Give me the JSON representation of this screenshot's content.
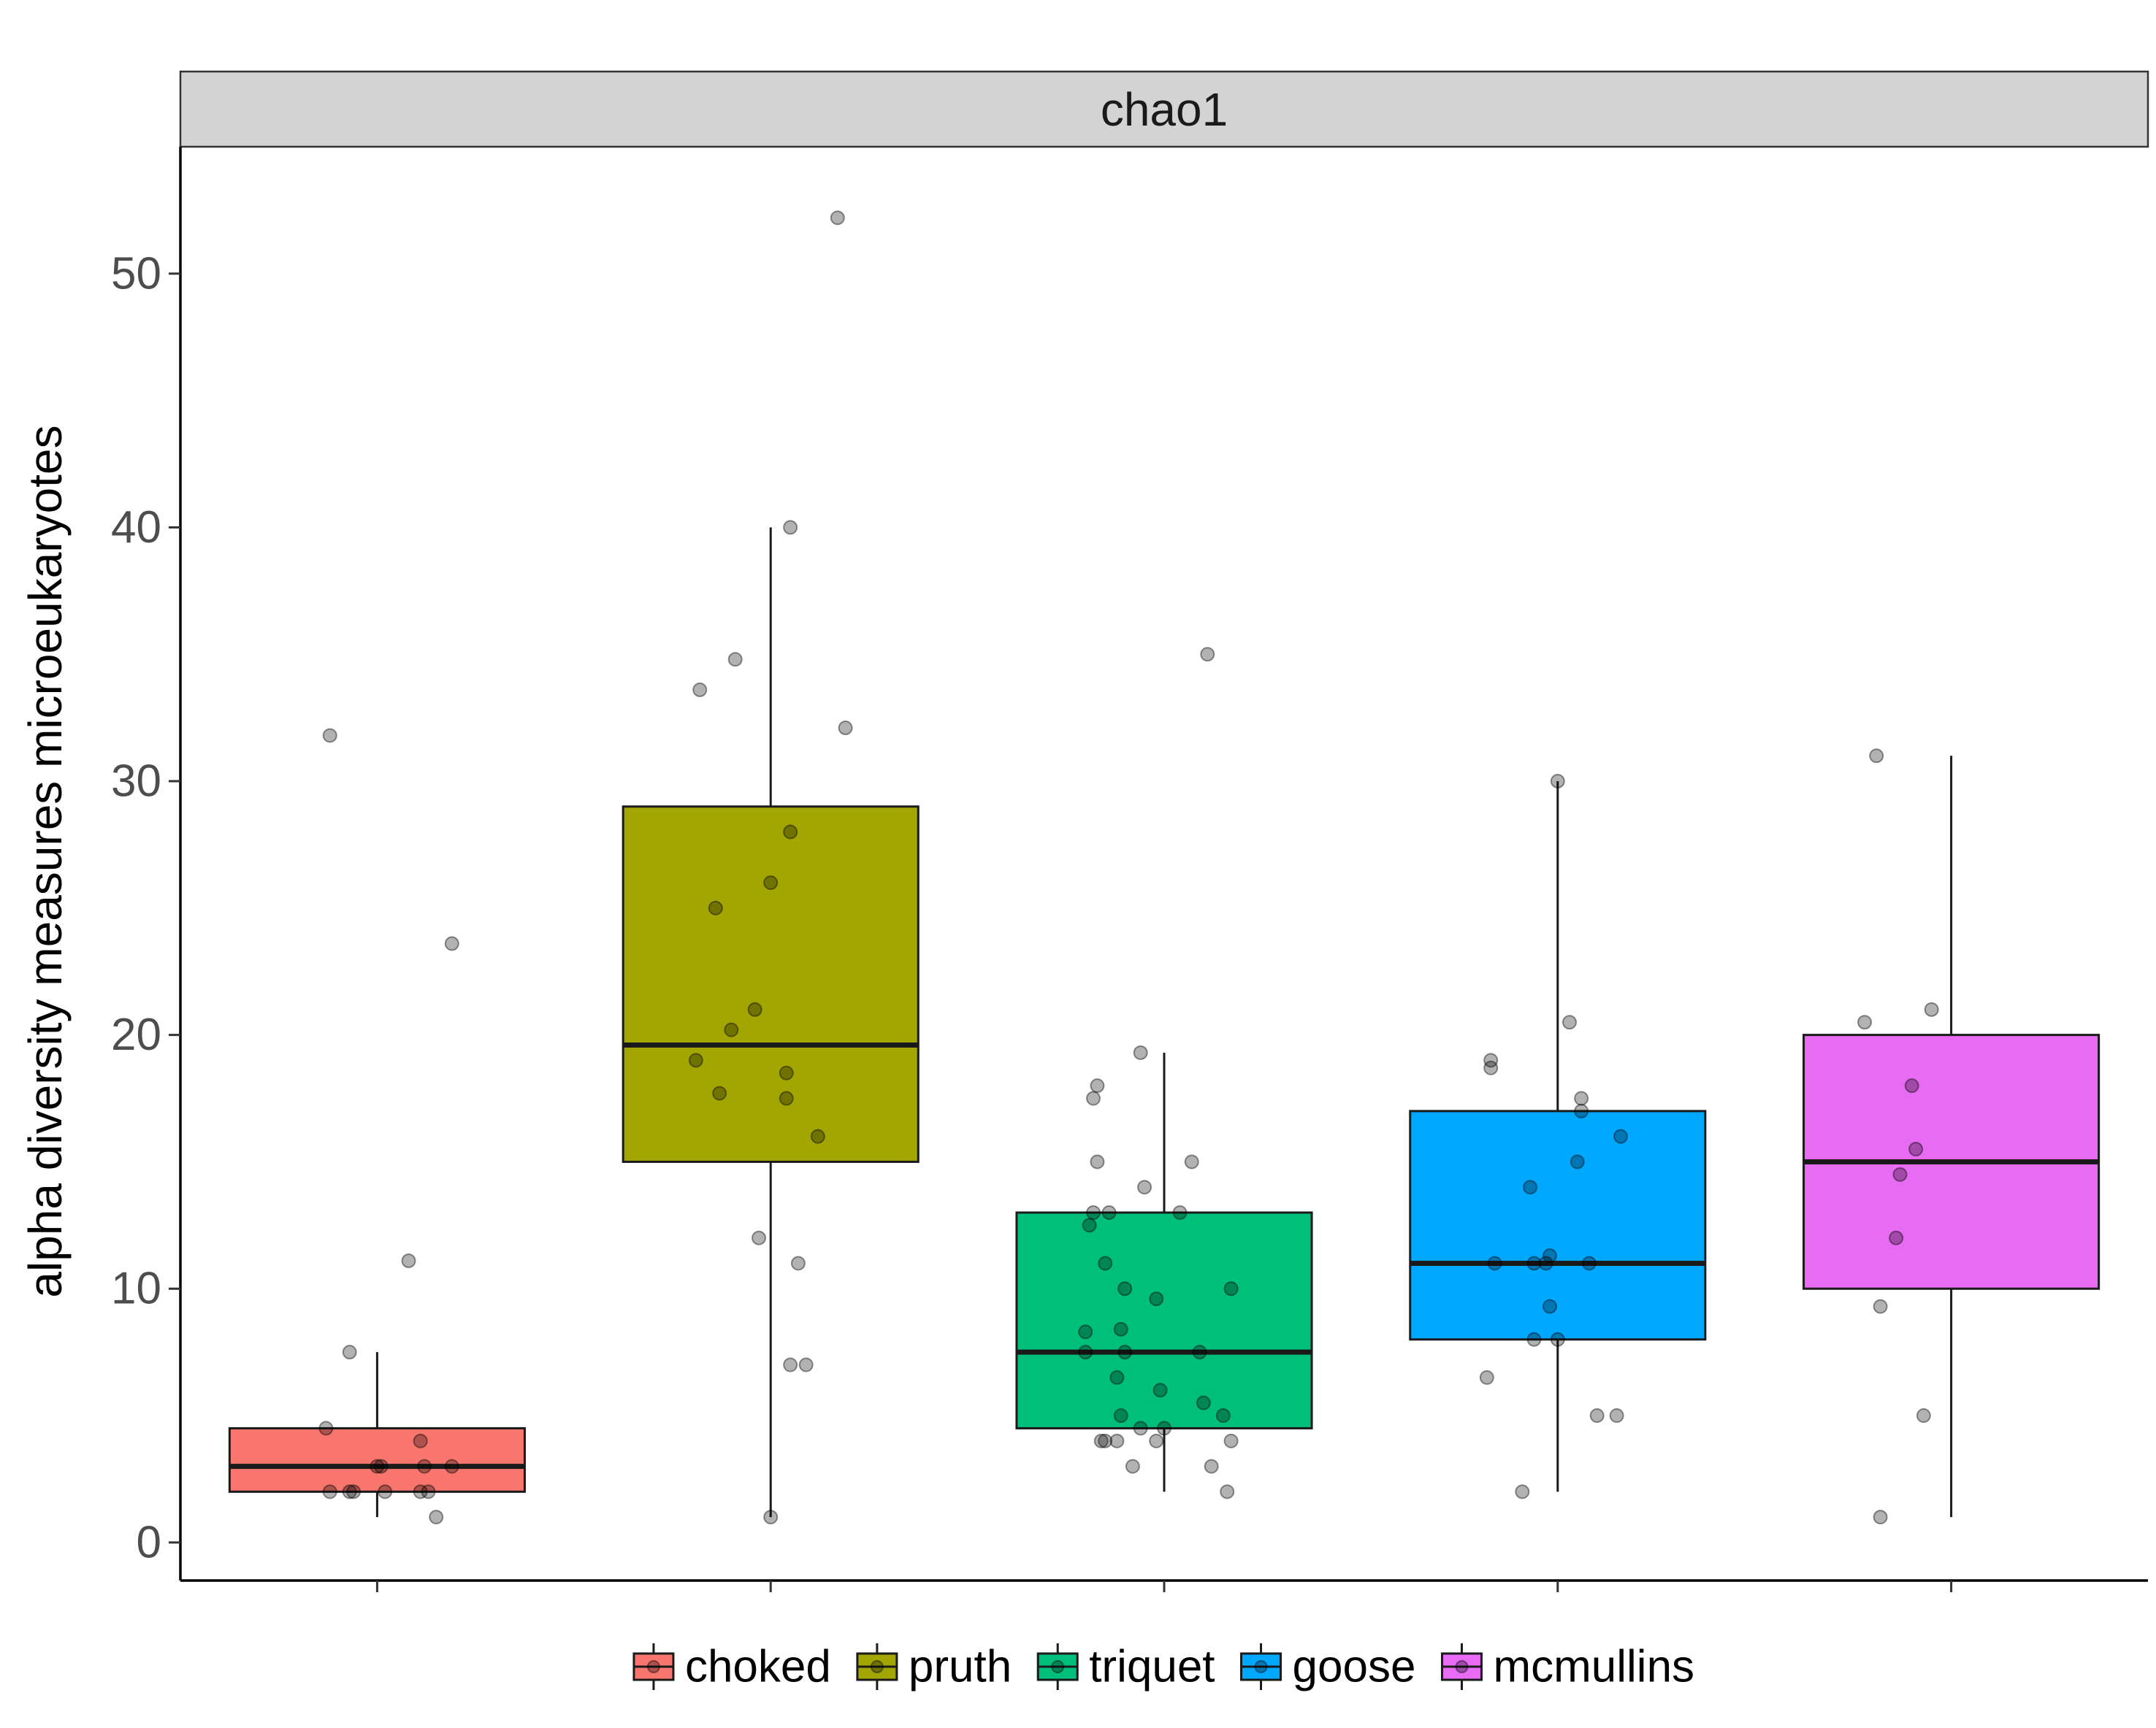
{
  "chart_data": {
    "type": "boxplot",
    "facet_label": "chao1",
    "ylabel": "alpha diversity measures microeukaryotes",
    "xlabel": "",
    "ylim": [
      -1.5,
      55
    ],
    "yticks": [
      0,
      10,
      20,
      30,
      40,
      50
    ],
    "ytick_labels": [
      "0",
      "10",
      "20",
      "30",
      "40",
      "50"
    ],
    "grid": false,
    "legend_position": "bottom",
    "legend_entries": [
      "choked",
      "pruth",
      "triquet",
      "goose",
      "mcmullins"
    ],
    "series": [
      {
        "name": "choked",
        "color": "#F8766D",
        "box": {
          "whisker_low": 1,
          "q1": 2,
          "median": 3,
          "q3": 4.5,
          "whisker_high": 7.5
        },
        "points": [
          [
            -0.12,
            31.8
          ],
          [
            0.19,
            23.6
          ],
          [
            0.08,
            11.1
          ],
          [
            -0.07,
            7.5
          ],
          [
            -0.13,
            4.5
          ],
          [
            0.11,
            4.0
          ],
          [
            0.01,
            3.0
          ],
          [
            0.0,
            3.0
          ],
          [
            0.12,
            3.0
          ],
          [
            0.19,
            3.0
          ],
          [
            -0.12,
            2.0
          ],
          [
            -0.06,
            2.0
          ],
          [
            -0.07,
            2.0
          ],
          [
            0.02,
            2.0
          ],
          [
            0.11,
            2.0
          ],
          [
            0.13,
            2.0
          ],
          [
            0.15,
            1.0
          ]
        ]
      },
      {
        "name": "pruth",
        "color": "#A3A500",
        "box": {
          "whisker_low": 1,
          "q1": 15,
          "median": 19.6,
          "q3": 29,
          "whisker_high": 40
        },
        "points": [
          [
            0.17,
            52.2
          ],
          [
            0.05,
            40.0
          ],
          [
            -0.09,
            34.8
          ],
          [
            -0.18,
            33.6
          ],
          [
            0.19,
            32.1
          ],
          [
            0.05,
            28.0
          ],
          [
            0.0,
            26.0
          ],
          [
            -0.14,
            25.0
          ],
          [
            -0.04,
            21.0
          ],
          [
            -0.1,
            20.2
          ],
          [
            -0.19,
            19.0
          ],
          [
            0.04,
            18.5
          ],
          [
            -0.13,
            17.7
          ],
          [
            0.04,
            17.5
          ],
          [
            0.12,
            16.0
          ],
          [
            -0.03,
            12.0
          ],
          [
            0.07,
            11.0
          ],
          [
            0.05,
            7.0
          ],
          [
            0.09,
            7.0
          ],
          [
            0.0,
            1.0
          ]
        ]
      },
      {
        "name": "triquet",
        "color": "#00BF7D",
        "box": {
          "whisker_low": 2,
          "q1": 4.5,
          "median": 7.5,
          "q3": 13,
          "whisker_high": 19.3
        },
        "points": [
          [
            0.11,
            35.0
          ],
          [
            -0.06,
            19.3
          ],
          [
            -0.17,
            18.0
          ],
          [
            -0.18,
            17.5
          ],
          [
            -0.17,
            15.0
          ],
          [
            0.07,
            15.0
          ],
          [
            -0.05,
            14.0
          ],
          [
            -0.18,
            13.0
          ],
          [
            -0.14,
            13.0
          ],
          [
            0.04,
            13.0
          ],
          [
            -0.19,
            12.5
          ],
          [
            -0.15,
            11.0
          ],
          [
            -0.1,
            10.0
          ],
          [
            0.17,
            10.0
          ],
          [
            -0.02,
            9.6
          ],
          [
            -0.2,
            8.3
          ],
          [
            -0.11,
            8.4
          ],
          [
            -0.2,
            7.5
          ],
          [
            -0.1,
            7.5
          ],
          [
            0.09,
            7.5
          ],
          [
            -0.12,
            6.5
          ],
          [
            -0.01,
            6.0
          ],
          [
            0.1,
            5.5
          ],
          [
            -0.11,
            5.0
          ],
          [
            0.15,
            5.0
          ],
          [
            -0.06,
            4.5
          ],
          [
            0.0,
            4.5
          ],
          [
            -0.16,
            4.0
          ],
          [
            -0.15,
            4.0
          ],
          [
            -0.12,
            4.0
          ],
          [
            -0.02,
            4.0
          ],
          [
            0.17,
            4.0
          ],
          [
            -0.08,
            3.0
          ],
          [
            0.12,
            3.0
          ],
          [
            0.16,
            2.0
          ]
        ]
      },
      {
        "name": "goose",
        "color": "#00A9FF",
        "box": {
          "whisker_low": 2,
          "q1": 8,
          "median": 11,
          "q3": 17,
          "whisker_high": 30
        },
        "points": [
          [
            0.0,
            30.0
          ],
          [
            0.03,
            20.5
          ],
          [
            -0.17,
            19.0
          ],
          [
            -0.17,
            18.7
          ],
          [
            0.06,
            17.5
          ],
          [
            0.06,
            17.0
          ],
          [
            0.16,
            16.0
          ],
          [
            0.05,
            15.0
          ],
          [
            -0.07,
            14.0
          ],
          [
            -0.16,
            11.0
          ],
          [
            -0.03,
            11.0
          ],
          [
            -0.06,
            11.0
          ],
          [
            -0.02,
            11.3
          ],
          [
            0.08,
            11.0
          ],
          [
            -0.02,
            9.3
          ],
          [
            -0.06,
            8.0
          ],
          [
            0.0,
            8.0
          ],
          [
            -0.18,
            6.5
          ],
          [
            0.1,
            5.0
          ],
          [
            0.15,
            5.0
          ],
          [
            -0.09,
            2.0
          ]
        ]
      },
      {
        "name": "mcmullins",
        "color": "#E76BF3",
        "box": {
          "whisker_low": 1,
          "q1": 10,
          "median": 15,
          "q3": 20,
          "whisker_high": 31
        },
        "points": [
          [
            -0.19,
            31.0
          ],
          [
            -0.22,
            20.5
          ],
          [
            -0.05,
            21.0
          ],
          [
            -0.1,
            18.0
          ],
          [
            -0.09,
            15.5
          ],
          [
            -0.13,
            14.5
          ],
          [
            -0.14,
            12.0
          ],
          [
            -0.18,
            9.3
          ],
          [
            -0.07,
            5.0
          ],
          [
            -0.18,
            1.0
          ]
        ]
      }
    ]
  }
}
